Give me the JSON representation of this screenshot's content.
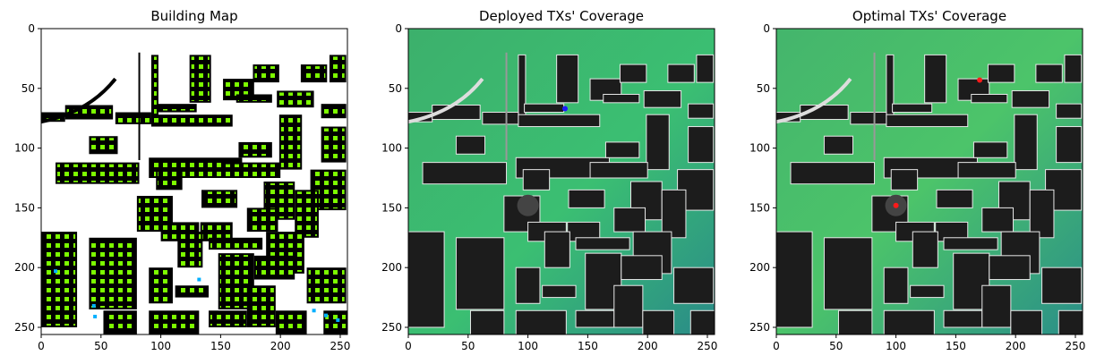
{
  "chart_data": [
    {
      "type": "heatmap",
      "title": "Building Map",
      "xlim": [
        0,
        256
      ],
      "ylim": [
        256,
        0
      ],
      "xticks": [
        0,
        50,
        100,
        150,
        200,
        250
      ],
      "yticks": [
        0,
        50,
        100,
        150,
        200,
        250
      ],
      "background": "#ffffff",
      "content": "building footprints (black) with candidate transmitter sites (green/yellow-green, a few cyan/blue)",
      "colors": {
        "building": "#000000",
        "site": "#7cfc00",
        "site_alt": "#00b0ff"
      }
    },
    {
      "type": "heatmap",
      "title": "Deployed TXs' Coverage",
      "xlim": [
        0,
        256
      ],
      "ylim": [
        256,
        0
      ],
      "xticks": [
        0,
        50,
        100,
        150,
        200,
        250
      ],
      "yticks": [
        0,
        50,
        100,
        150,
        200,
        250
      ],
      "content": "radio coverage map (green = strong, teal = weaker) with buildings in dark gray",
      "colors": {
        "strong": "#3fbf6a",
        "weak": "#2a8f8a",
        "building": "#1c1c1c"
      },
      "transmitters": [
        {
          "x": 131,
          "y": 67,
          "color": "#1a1aff"
        }
      ]
    },
    {
      "type": "heatmap",
      "title": "Optimal TXs' Coverage",
      "xlim": [
        0,
        256
      ],
      "ylim": [
        256,
        0
      ],
      "xticks": [
        0,
        50,
        100,
        150,
        200,
        250
      ],
      "yticks": [
        0,
        50,
        100,
        150,
        200,
        250
      ],
      "content": "radio coverage map (green = strong, teal = weaker) with buildings in dark gray",
      "colors": {
        "strong": "#4cc46a",
        "weak": "#2a8f8a",
        "building": "#1c1c1c"
      },
      "transmitters": [
        {
          "x": 170,
          "y": 43,
          "color": "#ff1a1a"
        },
        {
          "x": 100,
          "y": 148,
          "color": "#ff1a1a"
        }
      ]
    }
  ]
}
